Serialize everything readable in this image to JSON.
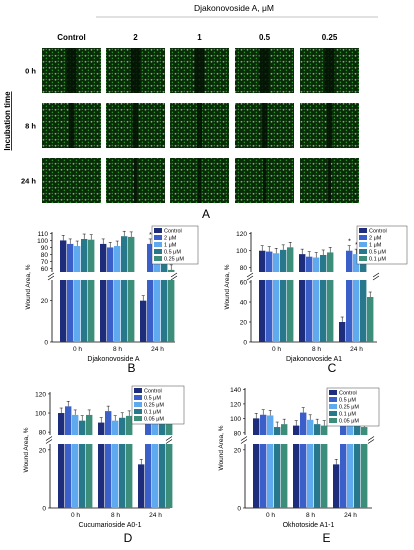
{
  "panel_a": {
    "compound_title": "Djakonovoside A, μM",
    "column_headers": [
      "Control",
      "2",
      "1",
      "0.5",
      "0.25"
    ],
    "row_labels": [
      "0 h",
      "8 h",
      "24 h"
    ],
    "axis_label": "Incubation time",
    "panel_letter": "A"
  },
  "colors": {
    "control": "#1d2d7c",
    "c2": "#3a5fc8",
    "c3": "#5fa9ee",
    "c4": "#26788a",
    "c5": "#3c8e7a",
    "micro_bg": "#0a2a0a",
    "micro_dot": "#4fd24a"
  },
  "chart_data": [
    {
      "type": "bar",
      "panel_letter": "B",
      "xlabel": "Djakonovoside A",
      "ylabel": "Wound Area, %",
      "categories": [
        "0 h",
        "8 h",
        "24 h"
      ],
      "upper_ticks": [
        "60",
        "70",
        "80",
        "90",
        "100",
        "110"
      ],
      "lower_ticks": [
        "0",
        "20"
      ],
      "series": [
        {
          "name": "Control",
          "values": [
            100,
            95,
            20
          ]
        },
        {
          "name": "2 μM",
          "values": [
            95,
            90,
            95
          ]
        },
        {
          "name": "1 μM",
          "values": [
            92,
            92,
            98
          ]
        },
        {
          "name": "0.5 μM",
          "values": [
            102,
            106,
            88
          ]
        },
        {
          "name": "0.25 μM",
          "values": [
            101,
            105,
            58
          ]
        }
      ],
      "annotations": [
        "*",
        "*",
        "*"
      ]
    },
    {
      "type": "bar",
      "panel_letter": "C",
      "xlabel": "Djakonovoside A1",
      "ylabel": "Wound Area, %",
      "categories": [
        "0 h",
        "8 h",
        "24 h"
      ],
      "upper_ticks": [
        "80",
        "100",
        "120"
      ],
      "lower_ticks": [
        "0",
        "20",
        "40",
        "60"
      ],
      "series": [
        {
          "name": "Control",
          "values": [
            100,
            96,
            20
          ]
        },
        {
          "name": "2 μM",
          "values": [
            99,
            93,
            100
          ]
        },
        {
          "name": "1 μM",
          "values": [
            97,
            92,
            96
          ]
        },
        {
          "name": "0.5 μM",
          "values": [
            101,
            95,
            96
          ]
        },
        {
          "name": "0.1 μM",
          "values": [
            104,
            98,
            45
          ]
        }
      ],
      "annotations": [
        "*",
        "*",
        "*"
      ]
    },
    {
      "type": "bar",
      "panel_letter": "D",
      "xlabel": "Cucumarioside A0-1",
      "ylabel": "Wound Area, %",
      "categories": [
        "0 h",
        "8 h",
        "24 h"
      ],
      "upper_ticks": [
        "80",
        "100",
        "120"
      ],
      "lower_ticks": [
        "0",
        "20"
      ],
      "series": [
        {
          "name": "Control",
          "values": [
            100,
            90,
            15
          ]
        },
        {
          "name": "0.5 μM",
          "values": [
            107,
            102,
            98
          ]
        },
        {
          "name": "0.25 μM",
          "values": [
            98,
            92,
            92
          ]
        },
        {
          "name": "0.1 μM",
          "values": [
            92,
            95,
            95
          ]
        },
        {
          "name": "0.05 μM",
          "values": [
            98,
            97,
            96
          ]
        }
      ],
      "annotations": [
        "*",
        "*",
        "*",
        "*"
      ]
    },
    {
      "type": "bar",
      "panel_letter": "E",
      "xlabel": "Okhotoside A1-1",
      "ylabel": "Wound Area, %",
      "categories": [
        "0 h",
        "8 h",
        "24 h"
      ],
      "upper_ticks": [
        "80",
        "100",
        "120",
        "140"
      ],
      "lower_ticks": [
        "0",
        "20"
      ],
      "series": [
        {
          "name": "Control",
          "values": [
            100,
            90,
            15
          ]
        },
        {
          "name": "0.5 μM",
          "values": [
            105,
            108,
            115
          ]
        },
        {
          "name": "0.25 μM",
          "values": [
            104,
            98,
            100
          ]
        },
        {
          "name": "0.1 μM",
          "values": [
            88,
            92,
            92
          ]
        },
        {
          "name": "0.05 μM",
          "values": [
            92,
            90,
            88
          ]
        }
      ],
      "annotations": [
        "*",
        "*",
        "*"
      ]
    }
  ]
}
